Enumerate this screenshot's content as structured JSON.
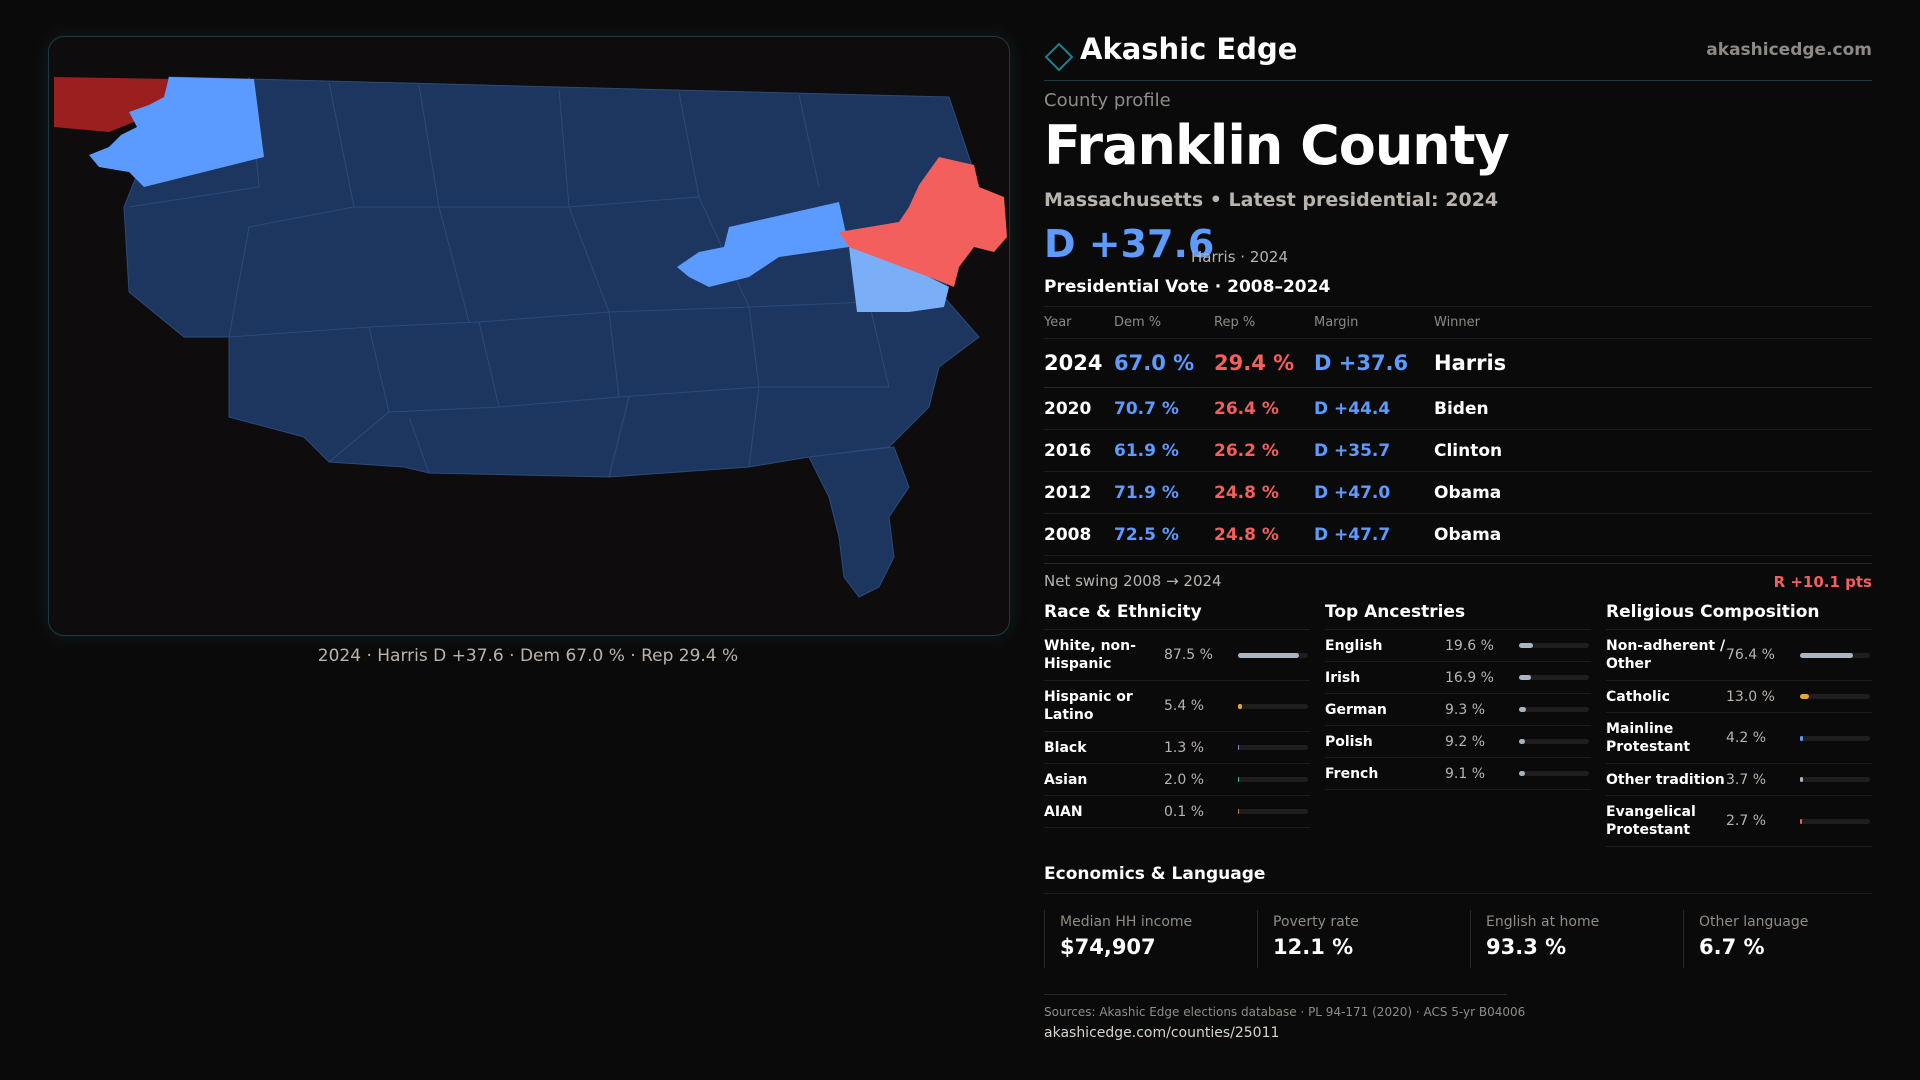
{
  "brand": {
    "name": "Akashic Edge",
    "url": "akashicedge.com",
    "logo_icon": "diamond-outline-icon",
    "accent": "#1a7f8c"
  },
  "profile": {
    "eyebrow": "County profile",
    "title": "Franklin County",
    "subtitle": "Massachusetts • Latest presidential: 2024",
    "margin": "D +37.6",
    "margin_meta": "Harris · 2024"
  },
  "map": {
    "caption": "2024 · Harris D +37.6 · Dem 67.0 % · Rep 29.4 %",
    "colors": {
      "dem_strong": "#5b9bff",
      "dem_light": "#7aaef7",
      "rep_strong": "#9c1f1f",
      "rep_light": "#f25f5c",
      "context": "#1d3660",
      "stroke": "#2a4b7a"
    }
  },
  "votes": {
    "title": "Presidential Vote · 2008–2024",
    "headers": {
      "year": "Year",
      "dem": "Dem %",
      "rep": "Rep %",
      "margin": "Margin",
      "winner": "Winner"
    },
    "rows": [
      {
        "year": "2024",
        "dem": "67.0 %",
        "rep": "29.4 %",
        "margin": "D +37.6",
        "winner": "Harris"
      },
      {
        "year": "2020",
        "dem": "70.7 %",
        "rep": "26.4 %",
        "margin": "D +44.4",
        "winner": "Biden"
      },
      {
        "year": "2016",
        "dem": "61.9 %",
        "rep": "26.2 %",
        "margin": "D +35.7",
        "winner": "Clinton"
      },
      {
        "year": "2012",
        "dem": "71.9 %",
        "rep": "24.8 %",
        "margin": "D +47.0",
        "winner": "Obama"
      },
      {
        "year": "2008",
        "dem": "72.5 %",
        "rep": "24.8 %",
        "margin": "D +47.7",
        "winner": "Obama"
      }
    ],
    "swing_label": "Net swing 2008 → 2024",
    "swing_value": "R +10.1 pts"
  },
  "race": {
    "title": "Race & Ethnicity",
    "items": [
      {
        "label": "White, non-Hispanic",
        "pct": "87.5 %",
        "value": 87.5,
        "color": "#aab4c2"
      },
      {
        "label": "Hispanic or Latino",
        "pct": "5.4 %",
        "value": 5.4,
        "color": "#e8a33b"
      },
      {
        "label": "Black",
        "pct": "1.3 %",
        "value": 1.3,
        "color": "#9b7be0"
      },
      {
        "label": "Asian",
        "pct": "2.0 %",
        "value": 2.0,
        "color": "#3fc29a"
      },
      {
        "label": "AIAN",
        "pct": "0.1 %",
        "value": 0.1,
        "color": "#c77a4b"
      }
    ]
  },
  "ancestry": {
    "title": "Top Ancestries",
    "items": [
      {
        "label": "English",
        "pct": "19.6 %",
        "value": 19.6,
        "color": "#aab4c2"
      },
      {
        "label": "Irish",
        "pct": "16.9 %",
        "value": 16.9,
        "color": "#aab4c2"
      },
      {
        "label": "German",
        "pct": "9.3 %",
        "value": 9.3,
        "color": "#aab4c2"
      },
      {
        "label": "Polish",
        "pct": "9.2 %",
        "value": 9.2,
        "color": "#aab4c2"
      },
      {
        "label": "French",
        "pct": "9.1 %",
        "value": 9.1,
        "color": "#aab4c2"
      }
    ]
  },
  "religion": {
    "title": "Religious Composition",
    "items": [
      {
        "label": "Non-adherent / Other",
        "pct": "76.4 %",
        "value": 76.4,
        "color": "#aab4c2"
      },
      {
        "label": "Catholic",
        "pct": "13.0 %",
        "value": 13.0,
        "color": "#e8a33b"
      },
      {
        "label": "Mainline Protestant",
        "pct": "4.2 %",
        "value": 4.2,
        "color": "#5b9bff"
      },
      {
        "label": "Other tradition",
        "pct": "3.7 %",
        "value": 3.7,
        "color": "#aab4c2"
      },
      {
        "label": "Evangelical Protestant",
        "pct": "2.7 %",
        "value": 2.7,
        "color": "#f25f5c"
      }
    ]
  },
  "economics": {
    "title": "Economics & Language",
    "stats": [
      {
        "label": "Median HH income",
        "value": "$74,907"
      },
      {
        "label": "Poverty rate",
        "value": "12.1 %"
      },
      {
        "label": "English at home",
        "value": "93.3 %"
      },
      {
        "label": "Other language",
        "value": "6.7 %"
      }
    ]
  },
  "footer": {
    "sources": "Sources: Akashic Edge elections database · PL 94-171 (2020) · ACS 5-yr B04006",
    "url": "akashicedge.com/counties/25011"
  }
}
